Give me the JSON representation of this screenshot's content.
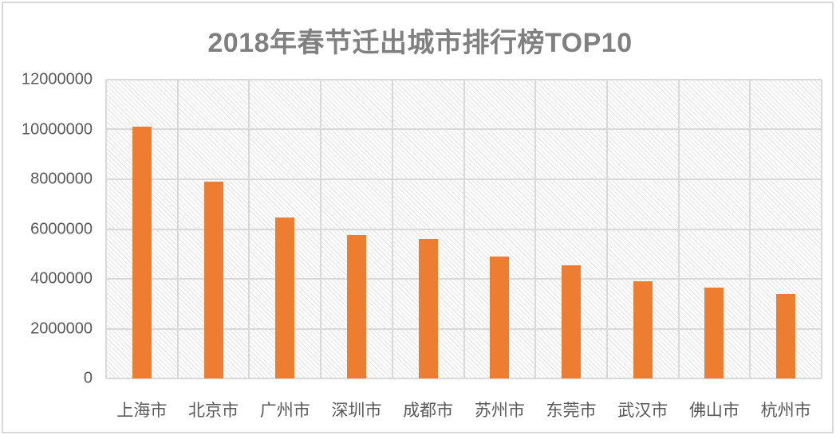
{
  "title": "2018年春节迁出城市排行榜TOP10",
  "chart_data": {
    "type": "bar",
    "title": "2018年春节迁出城市排行榜TOP10",
    "categories": [
      "上海市",
      "北京市",
      "广州市",
      "深圳市",
      "成都市",
      "苏州市",
      "东莞市",
      "武汉市",
      "佛山市",
      "杭州市"
    ],
    "values": [
      10100000,
      7900000,
      6450000,
      5750000,
      5600000,
      4900000,
      4550000,
      3900000,
      3650000,
      3400000
    ],
    "xlabel": "",
    "ylabel": "",
    "ylim": [
      0,
      12000000
    ],
    "ytick_interval": 2000000,
    "ytick_labels": [
      "0",
      "2000000",
      "4000000",
      "6000000",
      "8000000",
      "10000000",
      "12000000"
    ],
    "grid": "both",
    "legend": "none",
    "plot_background": "light-diagonal-hatch",
    "colors": {
      "bar": "#ED7D31",
      "gridline": "#D9D9D9",
      "frame_border": "#D9D9D9",
      "title_text": "#808080",
      "tick_text": "#595959",
      "background": "#FFFFFF"
    }
  }
}
